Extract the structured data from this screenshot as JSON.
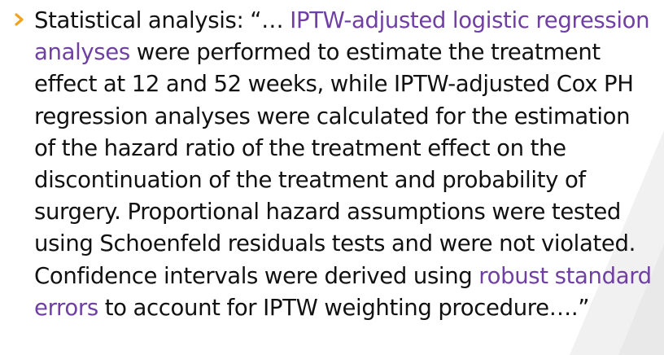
{
  "colors": {
    "text": "#111111",
    "highlight": "#6f3fa3",
    "bullet": "#f2a21c",
    "decoration": "#eeeeee"
  },
  "icons": {
    "bullet": "chevron-right-icon"
  },
  "paragraph": {
    "lead": "Statistical analysis: “… ",
    "term1": "IPTW-adjusted logistic regression analyses",
    "mid": " were performed to estimate the treatment effect at 12 and 52 weeks, while IPTW-adjusted Cox PH regression analyses were calculated for the estimation of the hazard ratio of the treatment effect on the discontinuation of the treatment and probability of surgery. Proportional hazard assumptions were tested using Schoenfeld residuals tests and were not violated. Confidence intervals were derived using ",
    "term2": "robust standard errors",
    "tail": " to account for IPTW weighting procedure….”"
  }
}
